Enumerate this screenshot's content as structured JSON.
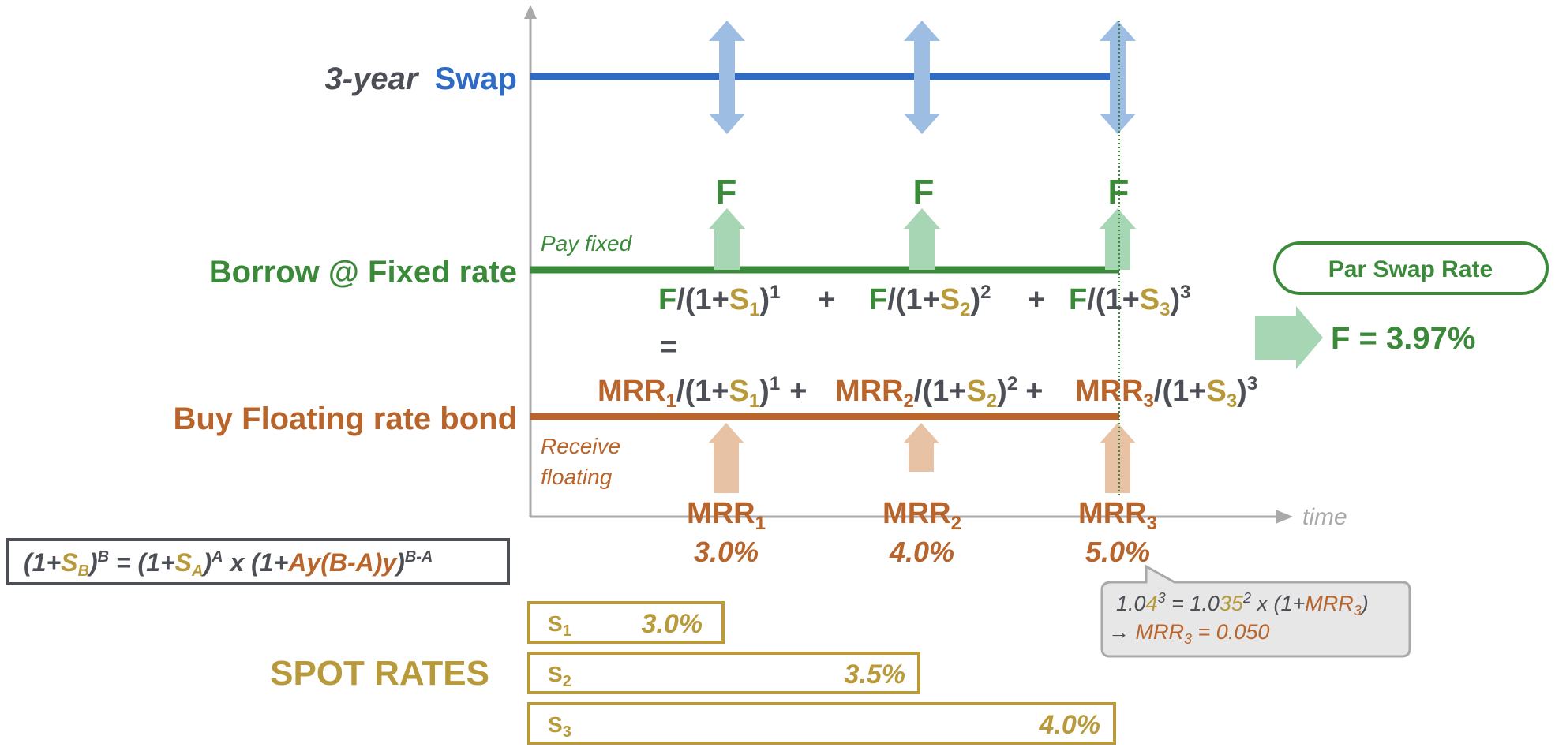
{
  "colors": {
    "blue": "#2f6bc4",
    "blue_light": "#9dbde3",
    "green": "#3a8a3a",
    "green_light": "#a6d6b3",
    "orange": "#b8642a",
    "orange_light": "#e8c2a4",
    "gold": "#b89a3a",
    "gray": "#4d4f57",
    "axis_gray": "#a9a9a9",
    "callout_bg": "#e6e7e6"
  },
  "swap": {
    "prefix": "3-year",
    "word": "Swap"
  },
  "borrow": {
    "label": "Borrow @ Fixed rate",
    "sub": "Pay fixed",
    "coupon": "F"
  },
  "buy": {
    "label": "Buy Floating rate bond",
    "sub_line1": "Receive",
    "sub_line2": "floating"
  },
  "axis": {
    "time": "time"
  },
  "pv_fixed": {
    "f": "F",
    "open": "/(1+",
    "close": ")",
    "plus": "+",
    "equals": "=",
    "s": [
      "S",
      "S",
      "S"
    ],
    "subs": [
      "1",
      "2",
      "3"
    ],
    "exps": [
      "1",
      "2",
      "3"
    ]
  },
  "pv_float": {
    "mrr": "MRR",
    "open": "/(1+",
    "close": ")",
    "plus": "+",
    "subs": [
      "1",
      "2",
      "3"
    ],
    "s": [
      "S",
      "S",
      "S"
    ],
    "exps": [
      "1",
      "2",
      "3"
    ]
  },
  "par_swap": {
    "title": "Par Swap Rate",
    "result": "F = 3.97%"
  },
  "mrr": {
    "label": "MRR",
    "subs": [
      "1",
      "2",
      "3"
    ],
    "values": [
      "3.0%",
      "4.0%",
      "5.0%"
    ]
  },
  "formula": {
    "p1": "(1+",
    "sb": "S",
    "sb_sub": "B",
    "p2": ")",
    "b_exp": "B",
    "eq": " =  (1+",
    "sa": "S",
    "sa_sub": "A",
    "p3": ")",
    "a_exp": "A",
    "p4": " x (1+",
    "fwd": "Ay(B-A)y",
    "p5": ")",
    "ba_exp": "B-A"
  },
  "callout": {
    "l1_a": "1.0",
    "l1_b": "4",
    "l1_exp": "3",
    "l1_c": " = 1.0",
    "l1_d": "35",
    "l1_exp2": "2",
    "l1_e": " x (1+",
    "l1_mrr": "MRR",
    "l1_sub": "3",
    "l1_f": ")",
    "l2_arrow": "→ ",
    "l2_mrr": "MRR",
    "l2_sub": "3",
    "l2_val": " = 0.050"
  },
  "spot": {
    "title": "SPOT RATES",
    "rates": [
      {
        "label": "S",
        "sub": "1",
        "value": "3.0%"
      },
      {
        "label": "S",
        "sub": "2",
        "value": "3.5%"
      },
      {
        "label": "S",
        "sub": "3",
        "value": "4.0%"
      }
    ]
  }
}
